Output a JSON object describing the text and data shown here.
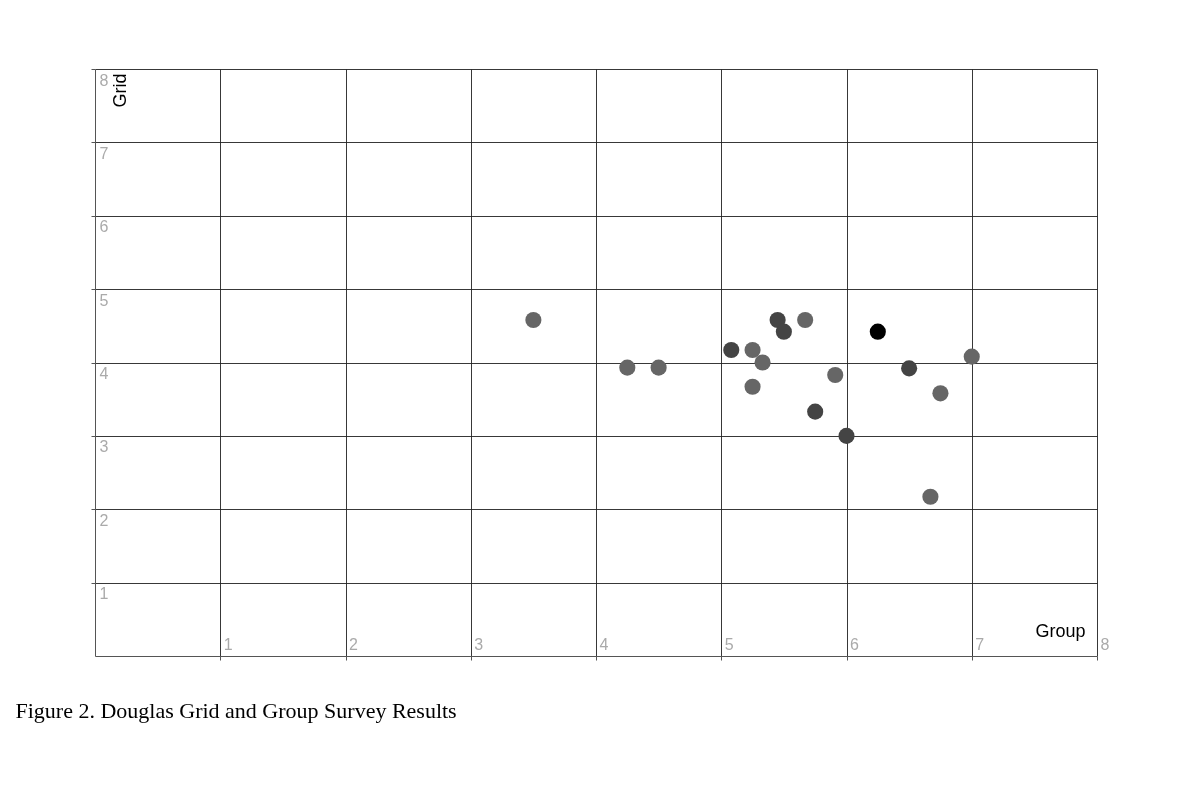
{
  "chart_data": {
    "type": "scatter",
    "title": "Figure 2. Douglas Grid and Group Survey Results",
    "xlabel": "Group",
    "ylabel": "Grid",
    "x": [
      3.5,
      4.25,
      4.5,
      5.08,
      5.25,
      5.33,
      5.25,
      5.45,
      5.5,
      5.67,
      5.91,
      5.75,
      6.0,
      6.25,
      6.5,
      6.75,
      7.0,
      6.67
    ],
    "values": [
      4.58,
      3.93,
      3.93,
      4.17,
      4.17,
      4.0,
      3.67,
      4.58,
      4.42,
      4.58,
      3.83,
      3.33,
      3.0,
      4.42,
      3.92,
      3.58,
      4.08,
      2.17
    ],
    "colors": [
      "#666666",
      "#666666",
      "#666666",
      "#444444",
      "#666666",
      "#666666",
      "#666666",
      "#444444",
      "#444444",
      "#666666",
      "#666666",
      "#444444",
      "#444444",
      "#000000",
      "#444444",
      "#666666",
      "#666666",
      "#666666"
    ],
    "xlim": [
      0,
      8
    ],
    "ylim": [
      0,
      8
    ],
    "xticks": [
      1,
      2,
      3,
      4,
      5,
      6,
      7,
      8
    ],
    "yticks": [
      1,
      2,
      3,
      4,
      5,
      6,
      7,
      8
    ],
    "grid": true,
    "marker": "circle"
  }
}
